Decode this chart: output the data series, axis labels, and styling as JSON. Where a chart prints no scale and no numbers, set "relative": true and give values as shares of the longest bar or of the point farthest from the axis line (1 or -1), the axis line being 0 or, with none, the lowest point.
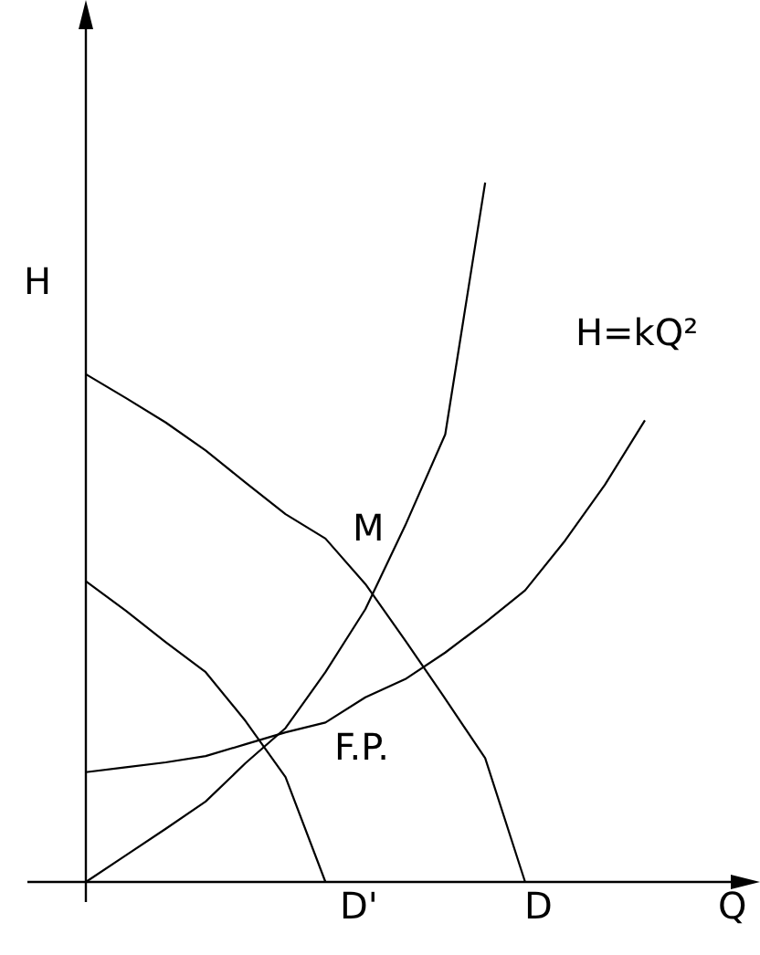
{
  "chart_data": {
    "type": "line",
    "relative": true,
    "xlabel": "Q",
    "ylabel": "H",
    "annotations": [
      "H=kQ²",
      "M",
      "F.P.",
      "D'",
      "D"
    ],
    "categories": [
      null,
      null,
      null,
      null,
      null,
      null,
      null,
      null,
      null,
      null,
      null,
      null,
      null,
      null,
      null
    ],
    "series": [
      {
        "color": "#000000",
        "values": [
          0,
          0.038,
          0.076,
          0.115,
          0.17,
          0.22,
          0.3,
          0.39,
          0.51,
          0.64,
          1,
          null,
          null,
          null,
          null
        ]
      },
      {
        "color": "#000000",
        "values": [
          0.157,
          0.164,
          0.171,
          0.18,
          0.197,
          0.214,
          0.228,
          0.264,
          0.29,
          0.328,
          0.371,
          0.417,
          0.488,
          0.568,
          0.66
        ]
      },
      {
        "color": "#000000",
        "values": [
          0.726,
          0.692,
          0.657,
          0.617,
          0.571,
          0.526,
          0.491,
          0.426,
          0.345,
          0.262,
          0.177,
          0,
          null,
          null,
          null
        ]
      },
      {
        "color": "#000000",
        "values": [
          0.43,
          0.388,
          0.343,
          0.3,
          0.23,
          0.15,
          0,
          null,
          null,
          null,
          null,
          null,
          null,
          null,
          null
        ]
      }
    ]
  }
}
